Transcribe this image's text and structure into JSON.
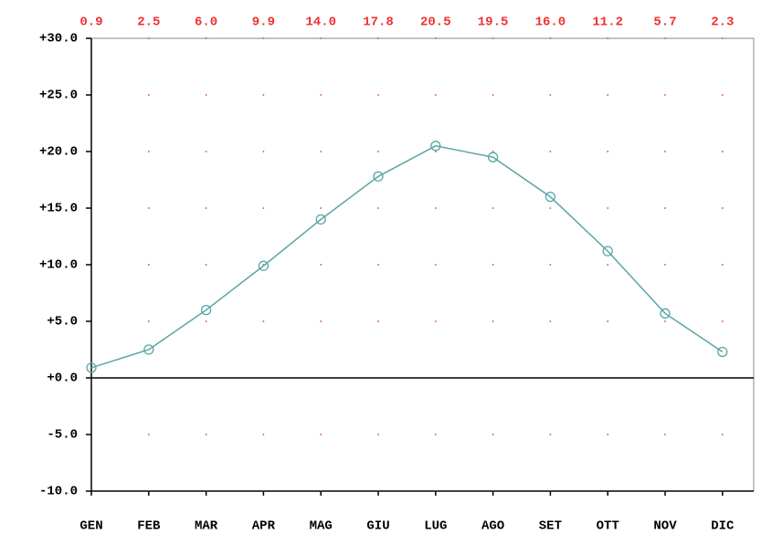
{
  "chart_data": {
    "type": "line",
    "categories": [
      "GEN",
      "FEB",
      "MAR",
      "APR",
      "MAG",
      "GIU",
      "LUG",
      "AGO",
      "SET",
      "OTT",
      "NOV",
      "DIC"
    ],
    "values": [
      0.9,
      2.5,
      6.0,
      9.9,
      14.0,
      17.8,
      20.5,
      19.5,
      16.0,
      11.2,
      5.7,
      2.3
    ],
    "value_labels": [
      "0.9",
      "2.5",
      "6.0",
      "9.9",
      "14.0",
      "17.8",
      "20.5",
      "19.5",
      "16.0",
      "11.2",
      "5.7",
      "2.3"
    ],
    "color": "#5aa6a6",
    "ylim": [
      -10,
      30
    ],
    "yticks": [
      {
        "value": -10,
        "label": "-10.0"
      },
      {
        "value": -5,
        "label": "-5.0"
      },
      {
        "value": 0,
        "label": "+0.0"
      },
      {
        "value": 5,
        "label": "+5.0"
      },
      {
        "value": 10,
        "label": "+10.0"
      },
      {
        "value": 15,
        "label": "+15.0"
      },
      {
        "value": 20,
        "label": "+20.0"
      },
      {
        "value": 25,
        "label": "+25.0"
      },
      {
        "value": 30,
        "label": "+30.0"
      }
    ],
    "grid": true
  }
}
